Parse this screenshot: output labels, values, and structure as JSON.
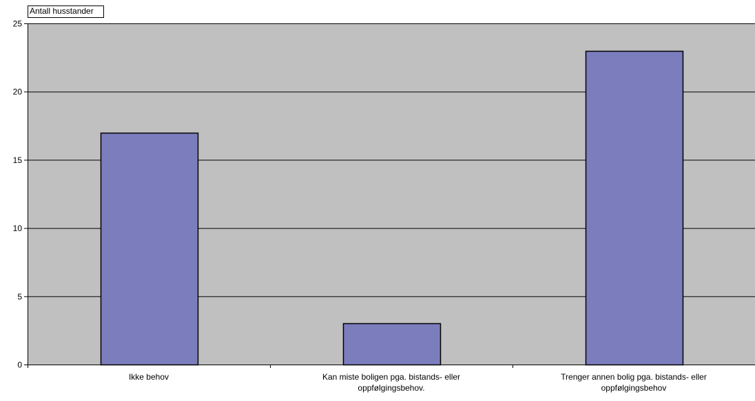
{
  "chart_data": {
    "type": "bar",
    "ylabel": "Antall  husstander",
    "categories": [
      [
        "Ikke behov"
      ],
      [
        "Kan miste boligen pga. bistands- eller",
        "oppfølgingsbehov."
      ],
      [
        "Trenger annen bolig pga. bistands- eller",
        "oppfølgingsbehov"
      ]
    ],
    "values": [
      17,
      3,
      23
    ],
    "ylim": [
      0,
      25
    ],
    "yticks": [
      0,
      5,
      10,
      15,
      20,
      25
    ],
    "grid": true,
    "legend": "none",
    "colors": {
      "plot_background": "#c0c0c0",
      "bar_fill": "#7b7dbd",
      "bar_stroke": "#000000",
      "gridline": "#000000"
    }
  }
}
